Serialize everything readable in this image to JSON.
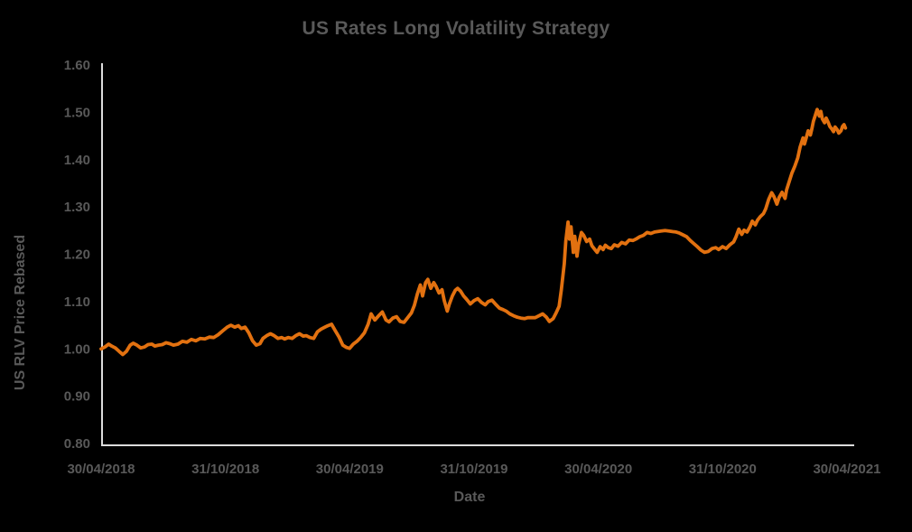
{
  "styles": {
    "background": "#000000",
    "text_color": "#595959",
    "axis_color": "#DCDCDC",
    "line_color": "#E27110"
  },
  "chart_data": {
    "type": "line",
    "title": "US Rates Long Volatility Strategy",
    "xlabel": "Date",
    "ylabel": "US RLV Price Rebased",
    "grid": false,
    "legend": "none",
    "x_axis": {
      "start": "30/04/2018",
      "end": "30/04/2021",
      "tick_labels": [
        "30/04/2018",
        "31/10/2018",
        "30/04/2019",
        "31/10/2019",
        "30/04/2020",
        "31/10/2020",
        "30/04/2021"
      ]
    },
    "y_axis": {
      "min": 0.8,
      "max": 1.6,
      "step": 0.1,
      "tick_labels": [
        "1.60",
        "1.50",
        "1.40",
        "1.30",
        "1.20",
        "1.10",
        "1.00",
        "0.90",
        "0.80"
      ]
    },
    "series": [
      {
        "name": "US RLV Price Rebased",
        "color": "#E27110",
        "x_unit": "fraction of x-axis span, 0.0 = 30/04/2018, 1.0 = 30/04/2021",
        "points": [
          [
            0.0,
            1.0
          ],
          [
            0.005,
            1.004
          ],
          [
            0.01,
            1.01
          ],
          [
            0.014,
            1.006
          ],
          [
            0.019,
            1.002
          ],
          [
            0.024,
            0.995
          ],
          [
            0.029,
            0.988
          ],
          [
            0.034,
            0.995
          ],
          [
            0.039,
            1.008
          ],
          [
            0.043,
            1.012
          ],
          [
            0.048,
            1.008
          ],
          [
            0.053,
            1.002
          ],
          [
            0.058,
            1.004
          ],
          [
            0.063,
            1.009
          ],
          [
            0.068,
            1.01
          ],
          [
            0.072,
            1.006
          ],
          [
            0.077,
            1.008
          ],
          [
            0.082,
            1.009
          ],
          [
            0.087,
            1.013
          ],
          [
            0.092,
            1.011
          ],
          [
            0.097,
            1.008
          ],
          [
            0.103,
            1.01
          ],
          [
            0.109,
            1.016
          ],
          [
            0.115,
            1.014
          ],
          [
            0.121,
            1.02
          ],
          [
            0.127,
            1.017
          ],
          [
            0.133,
            1.022
          ],
          [
            0.139,
            1.021
          ],
          [
            0.145,
            1.025
          ],
          [
            0.151,
            1.024
          ],
          [
            0.157,
            1.03
          ],
          [
            0.163,
            1.038
          ],
          [
            0.169,
            1.046
          ],
          [
            0.174,
            1.05
          ],
          [
            0.179,
            1.046
          ],
          [
            0.184,
            1.049
          ],
          [
            0.188,
            1.043
          ],
          [
            0.193,
            1.046
          ],
          [
            0.198,
            1.034
          ],
          [
            0.203,
            1.017
          ],
          [
            0.208,
            1.008
          ],
          [
            0.213,
            1.011
          ],
          [
            0.217,
            1.022
          ],
          [
            0.222,
            1.028
          ],
          [
            0.227,
            1.032
          ],
          [
            0.232,
            1.028
          ],
          [
            0.237,
            1.022
          ],
          [
            0.242,
            1.024
          ],
          [
            0.246,
            1.021
          ],
          [
            0.251,
            1.024
          ],
          [
            0.256,
            1.022
          ],
          [
            0.261,
            1.028
          ],
          [
            0.266,
            1.032
          ],
          [
            0.271,
            1.027
          ],
          [
            0.275,
            1.028
          ],
          [
            0.28,
            1.024
          ],
          [
            0.285,
            1.022
          ],
          [
            0.29,
            1.036
          ],
          [
            0.295,
            1.042
          ],
          [
            0.3,
            1.046
          ],
          [
            0.304,
            1.049
          ],
          [
            0.309,
            1.052
          ],
          [
            0.314,
            1.038
          ],
          [
            0.319,
            1.025
          ],
          [
            0.324,
            1.008
          ],
          [
            0.329,
            1.003
          ],
          [
            0.333,
            1.001
          ],
          [
            0.338,
            1.01
          ],
          [
            0.343,
            1.016
          ],
          [
            0.348,
            1.024
          ],
          [
            0.353,
            1.034
          ],
          [
            0.358,
            1.052
          ],
          [
            0.362,
            1.074
          ],
          [
            0.367,
            1.061
          ],
          [
            0.372,
            1.07
          ],
          [
            0.377,
            1.078
          ],
          [
            0.382,
            1.061
          ],
          [
            0.386,
            1.057
          ],
          [
            0.391,
            1.065
          ],
          [
            0.396,
            1.068
          ],
          [
            0.401,
            1.058
          ],
          [
            0.406,
            1.056
          ],
          [
            0.411,
            1.066
          ],
          [
            0.416,
            1.076
          ],
          [
            0.42,
            1.092
          ],
          [
            0.424,
            1.116
          ],
          [
            0.428,
            1.135
          ],
          [
            0.431,
            1.112
          ],
          [
            0.435,
            1.14
          ],
          [
            0.438,
            1.147
          ],
          [
            0.442,
            1.128
          ],
          [
            0.446,
            1.14
          ],
          [
            0.449,
            1.132
          ],
          [
            0.453,
            1.118
          ],
          [
            0.457,
            1.125
          ],
          [
            0.46,
            1.102
          ],
          [
            0.464,
            1.08
          ],
          [
            0.467,
            1.095
          ],
          [
            0.471,
            1.112
          ],
          [
            0.475,
            1.124
          ],
          [
            0.478,
            1.128
          ],
          [
            0.482,
            1.122
          ],
          [
            0.486,
            1.112
          ],
          [
            0.49,
            1.105
          ],
          [
            0.495,
            1.095
          ],
          [
            0.5,
            1.102
          ],
          [
            0.505,
            1.106
          ],
          [
            0.51,
            1.098
          ],
          [
            0.515,
            1.093
          ],
          [
            0.519,
            1.1
          ],
          [
            0.524,
            1.103
          ],
          [
            0.529,
            1.094
          ],
          [
            0.534,
            1.086
          ],
          [
            0.539,
            1.083
          ],
          [
            0.543,
            1.08
          ],
          [
            0.548,
            1.074
          ],
          [
            0.553,
            1.07
          ],
          [
            0.558,
            1.067
          ],
          [
            0.563,
            1.065
          ],
          [
            0.568,
            1.064
          ],
          [
            0.572,
            1.066
          ],
          [
            0.577,
            1.066
          ],
          [
            0.582,
            1.066
          ],
          [
            0.587,
            1.07
          ],
          [
            0.592,
            1.074
          ],
          [
            0.597,
            1.067
          ],
          [
            0.601,
            1.058
          ],
          [
            0.606,
            1.064
          ],
          [
            0.61,
            1.076
          ],
          [
            0.614,
            1.09
          ],
          [
            0.617,
            1.124
          ],
          [
            0.621,
            1.18
          ],
          [
            0.623,
            1.228
          ],
          [
            0.626,
            1.268
          ],
          [
            0.628,
            1.232
          ],
          [
            0.63,
            1.258
          ],
          [
            0.633,
            1.204
          ],
          [
            0.635,
            1.238
          ],
          [
            0.638,
            1.196
          ],
          [
            0.64,
            1.22
          ],
          [
            0.644,
            1.246
          ],
          [
            0.647,
            1.24
          ],
          [
            0.651,
            1.227
          ],
          [
            0.655,
            1.232
          ],
          [
            0.658,
            1.218
          ],
          [
            0.662,
            1.21
          ],
          [
            0.665,
            1.204
          ],
          [
            0.669,
            1.216
          ],
          [
            0.673,
            1.21
          ],
          [
            0.676,
            1.219
          ],
          [
            0.68,
            1.214
          ],
          [
            0.684,
            1.212
          ],
          [
            0.688,
            1.22
          ],
          [
            0.693,
            1.217
          ],
          [
            0.698,
            1.225
          ],
          [
            0.703,
            1.222
          ],
          [
            0.708,
            1.23
          ],
          [
            0.713,
            1.229
          ],
          [
            0.717,
            1.232
          ],
          [
            0.722,
            1.237
          ],
          [
            0.727,
            1.24
          ],
          [
            0.732,
            1.246
          ],
          [
            0.737,
            1.244
          ],
          [
            0.742,
            1.247
          ],
          [
            0.746,
            1.248
          ],
          [
            0.751,
            1.249
          ],
          [
            0.756,
            1.25
          ],
          [
            0.761,
            1.249
          ],
          [
            0.766,
            1.248
          ],
          [
            0.771,
            1.247
          ],
          [
            0.775,
            1.245
          ],
          [
            0.78,
            1.241
          ],
          [
            0.785,
            1.237
          ],
          [
            0.79,
            1.229
          ],
          [
            0.795,
            1.222
          ],
          [
            0.8,
            1.215
          ],
          [
            0.804,
            1.209
          ],
          [
            0.809,
            1.204
          ],
          [
            0.814,
            1.206
          ],
          [
            0.819,
            1.212
          ],
          [
            0.824,
            1.214
          ],
          [
            0.828,
            1.21
          ],
          [
            0.833,
            1.216
          ],
          [
            0.838,
            1.212
          ],
          [
            0.843,
            1.22
          ],
          [
            0.848,
            1.226
          ],
          [
            0.851,
            1.236
          ],
          [
            0.855,
            1.253
          ],
          [
            0.859,
            1.242
          ],
          [
            0.862,
            1.251
          ],
          [
            0.866,
            1.247
          ],
          [
            0.87,
            1.258
          ],
          [
            0.873,
            1.27
          ],
          [
            0.877,
            1.262
          ],
          [
            0.88,
            1.272
          ],
          [
            0.884,
            1.28
          ],
          [
            0.888,
            1.286
          ],
          [
            0.891,
            1.296
          ],
          [
            0.895,
            1.316
          ],
          [
            0.899,
            1.33
          ],
          [
            0.902,
            1.322
          ],
          [
            0.906,
            1.306
          ],
          [
            0.909,
            1.32
          ],
          [
            0.913,
            1.331
          ],
          [
            0.917,
            1.318
          ],
          [
            0.919,
            1.336
          ],
          [
            0.923,
            1.356
          ],
          [
            0.926,
            1.371
          ],
          [
            0.93,
            1.386
          ],
          [
            0.934,
            1.404
          ],
          [
            0.937,
            1.426
          ],
          [
            0.941,
            1.446
          ],
          [
            0.943,
            1.433
          ],
          [
            0.946,
            1.45
          ],
          [
            0.948,
            1.461
          ],
          [
            0.951,
            1.452
          ],
          [
            0.953,
            1.466
          ],
          [
            0.955,
            1.481
          ],
          [
            0.958,
            1.496
          ],
          [
            0.96,
            1.506
          ],
          [
            0.963,
            1.492
          ],
          [
            0.965,
            1.502
          ],
          [
            0.967,
            1.486
          ],
          [
            0.97,
            1.478
          ],
          [
            0.972,
            1.488
          ],
          [
            0.975,
            1.478
          ],
          [
            0.977,
            1.47
          ],
          [
            0.98,
            1.464
          ],
          [
            0.982,
            1.459
          ],
          [
            0.984,
            1.469
          ],
          [
            0.987,
            1.463
          ],
          [
            0.989,
            1.456
          ],
          [
            0.992,
            1.461
          ],
          [
            0.994,
            1.47
          ],
          [
            0.996,
            1.474
          ],
          [
            0.998,
            1.467
          ]
        ]
      }
    ]
  }
}
